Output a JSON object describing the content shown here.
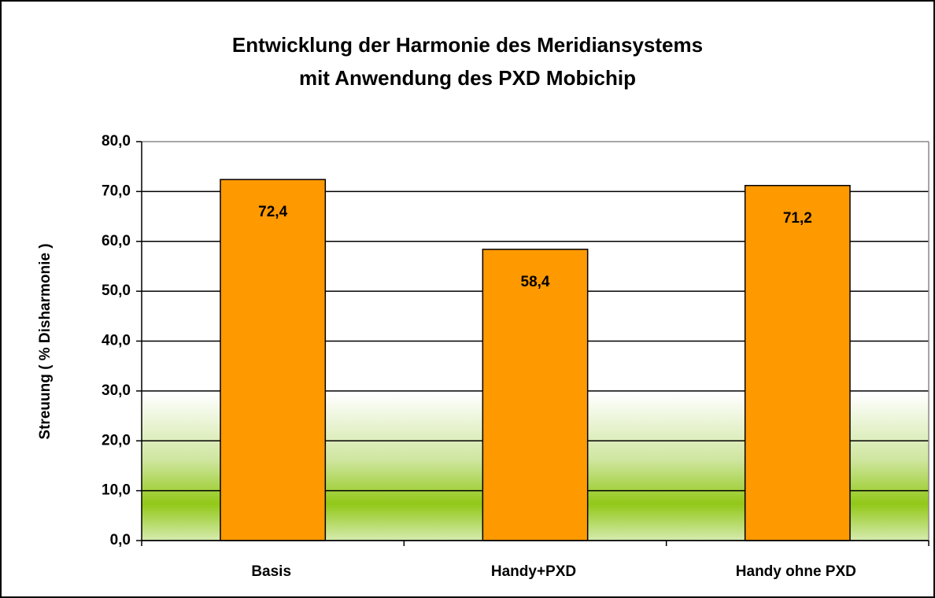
{
  "chart_data": {
    "type": "bar",
    "title": "Entwicklung der Harmonie des Meridiansystems\nmit Anwendung des PXD Mobichip",
    "y_label": "Streuung ( % Disharmonie )",
    "categories": [
      "Basis",
      "Handy+PXD",
      "Handy ohne PXD"
    ],
    "values": [
      72.4,
      58.4,
      71.2
    ],
    "value_labels": [
      "72,4",
      "58,4",
      "71,2"
    ],
    "color": "#ff9900",
    "ylim": [
      0,
      80
    ],
    "yticks": [
      {
        "value": 0,
        "label": "0,0"
      },
      {
        "value": 10,
        "label": "10,0"
      },
      {
        "value": 20,
        "label": "20,0"
      },
      {
        "value": 30,
        "label": "30,0"
      },
      {
        "value": 40,
        "label": "40,0"
      },
      {
        "value": 50,
        "label": "50,0"
      },
      {
        "value": 60,
        "label": "60,0"
      },
      {
        "value": 70,
        "label": "70,0"
      },
      {
        "value": 80,
        "label": "80,0"
      }
    ],
    "grid": true
  }
}
